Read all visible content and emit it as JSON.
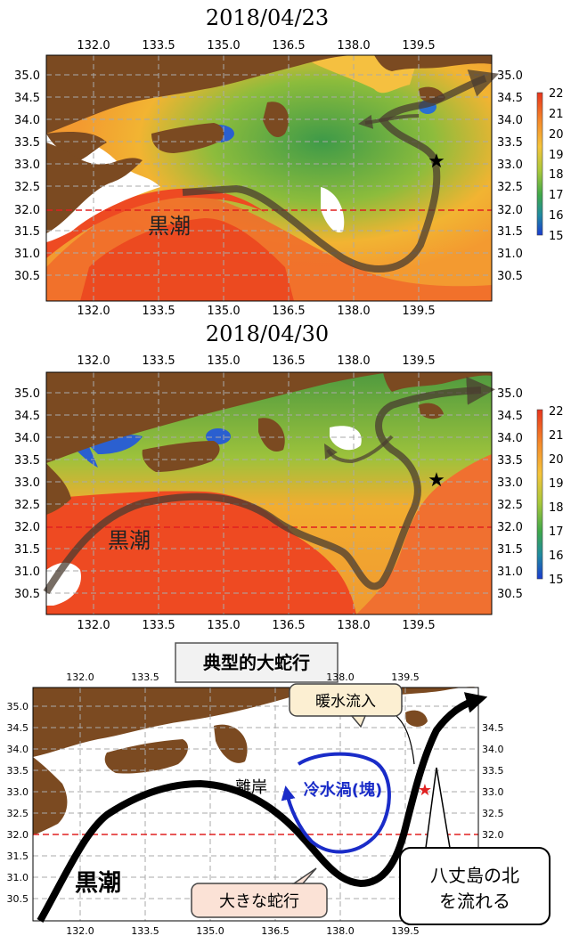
{
  "panels": [
    {
      "title": "2018/04/23",
      "kuroshio_label": "黒潮",
      "x_ticks": [
        "132.0",
        "133.5",
        "135.0",
        "136.5",
        "138.0",
        "139.5"
      ],
      "y_ticks": [
        "35.0",
        "34.5",
        "34.0",
        "33.5",
        "33.0",
        "32.5",
        "32.0",
        "31.5",
        "31.0",
        "30.5"
      ],
      "colorbar_ticks": [
        "22",
        "21",
        "20",
        "19",
        "18",
        "17",
        "16",
        "15"
      ]
    },
    {
      "title": "2018/04/30",
      "kuroshio_label": "黒潮",
      "x_ticks": [
        "132.0",
        "133.5",
        "135.0",
        "136.5",
        "138.0",
        "139.5"
      ],
      "y_ticks": [
        "35.0",
        "34.5",
        "34.0",
        "33.5",
        "33.0",
        "32.5",
        "32.0",
        "31.5",
        "31.0",
        "30.5"
      ],
      "colorbar_ticks": [
        "22",
        "21",
        "20",
        "19",
        "18",
        "17",
        "16",
        "15"
      ]
    }
  ],
  "schematic": {
    "title": "典型的大蛇行",
    "x_ticks": [
      "132.0",
      "133.5",
      "135.0",
      "136.5",
      "138.0",
      "139.5"
    ],
    "y_ticks": [
      "35.0",
      "34.5",
      "34.0",
      "33.5",
      "33.0",
      "32.5",
      "32.0",
      "31.5",
      "31.0",
      "30.5"
    ],
    "kuroshio_label": "黒潮",
    "offshore_label": "離岸",
    "cold_eddy_label": "冷水渦(塊)",
    "warm_inflow_label": "暖水流入",
    "meander_label": "大きな蛇行",
    "hachijo_label_line1": "八丈島の北",
    "hachijo_label_line2": "を流れる"
  },
  "colors": {
    "land": "#7b4a21",
    "warm": "#ee4420",
    "mid": "#f3b030",
    "cool": "#78b838",
    "cold": "#1f5fc8",
    "cold_eddy": "#1a2cc8",
    "lat32_line": "#e02020",
    "star_schematic": "#e02020"
  }
}
